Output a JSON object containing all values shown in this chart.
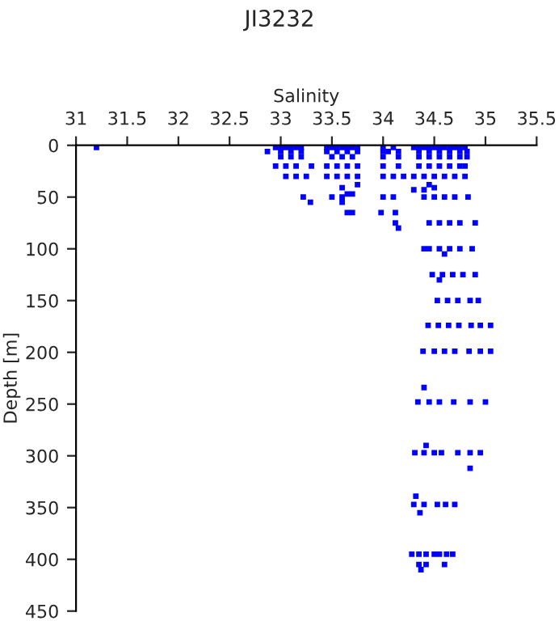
{
  "chart_data": {
    "type": "scatter",
    "title": "JI3232",
    "xlabel": "Salinity",
    "ylabel": "Depth [m]",
    "xlim": [
      31,
      35.5
    ],
    "xticks": [
      31,
      31.5,
      32,
      32.5,
      33,
      33.5,
      34,
      34.5,
      35,
      35.5
    ],
    "ylim": [
      450,
      0
    ],
    "yticks": [
      0,
      50,
      100,
      150,
      200,
      250,
      300,
      350,
      400,
      450
    ],
    "marker": "square",
    "grid": false,
    "legend": false,
    "series": [
      {
        "color": "#0000ff",
        "x": [
          31.2,
          32.95,
          33.0,
          33.05,
          33.1,
          33.15,
          33.2,
          33.45,
          33.5,
          33.55,
          33.6,
          33.65,
          33.7,
          33.75,
          34.0,
          34.1,
          34.3,
          34.35,
          34.4,
          34.45,
          34.5,
          34.55,
          34.6,
          34.65,
          34.7,
          34.75,
          34.8,
          32.87,
          33.0,
          33.1,
          33.2,
          33.45,
          33.55,
          33.65,
          33.75,
          34.0,
          34.05,
          34.15,
          34.35,
          34.45,
          34.55,
          34.65,
          34.75,
          34.82,
          33.0,
          33.1,
          33.2,
          33.5,
          33.6,
          33.7,
          34.0,
          34.15,
          34.35,
          34.45,
          34.55,
          34.65,
          34.75,
          34.82,
          32.95,
          33.05,
          33.15,
          33.3,
          33.45,
          33.55,
          33.65,
          33.75,
          34.0,
          34.15,
          34.35,
          34.45,
          34.55,
          34.65,
          34.75,
          34.8,
          33.05,
          33.15,
          33.25,
          33.45,
          33.55,
          33.65,
          33.75,
          34.0,
          34.1,
          34.2,
          34.3,
          34.4,
          34.5,
          34.6,
          34.7,
          34.8,
          33.75,
          34.45,
          33.6,
          34.5,
          34.3,
          34.4,
          33.65,
          33.7,
          33.22,
          33.5,
          33.6,
          34.0,
          34.1,
          34.4,
          34.5,
          34.6,
          34.7,
          34.83,
          33.29,
          33.6,
          33.65,
          33.7,
          33.98,
          34.12,
          34.12,
          34.45,
          34.55,
          34.65,
          34.75,
          34.9,
          34.15,
          34.4,
          34.45,
          34.55,
          34.65,
          34.75,
          34.87,
          34.6,
          34.48,
          34.58,
          34.68,
          34.78,
          34.9,
          34.55,
          34.53,
          34.63,
          34.73,
          34.85,
          34.93,
          34.44,
          34.54,
          34.64,
          34.74,
          34.86,
          34.95,
          35.05,
          34.39,
          34.5,
          34.6,
          34.7,
          34.84,
          34.95,
          35.05,
          34.4,
          34.34,
          34.45,
          34.55,
          34.69,
          34.85,
          35.0,
          34.42,
          34.31,
          34.4,
          34.5,
          34.57,
          34.73,
          34.85,
          34.95,
          34.85,
          34.32,
          34.3,
          34.4,
          34.53,
          34.61,
          34.7,
          34.36,
          34.28,
          34.35,
          34.42,
          34.5,
          34.55,
          34.62,
          34.68,
          34.35,
          34.42,
          34.6,
          34.37
        ],
        "values": [
          2,
          2,
          2,
          2,
          2,
          2,
          2,
          2,
          2,
          2,
          2,
          2,
          2,
          2,
          2,
          2,
          2,
          2,
          2,
          2,
          2,
          2,
          2,
          2,
          2,
          2,
          2,
          6,
          6,
          6,
          6,
          6,
          6,
          6,
          6,
          6,
          6,
          6,
          6,
          6,
          6,
          6,
          6,
          6,
          11,
          11,
          11,
          11,
          11,
          11,
          11,
          11,
          11,
          11,
          11,
          11,
          11,
          11,
          20,
          20,
          20,
          20,
          20,
          20,
          20,
          20,
          20,
          20,
          20,
          20,
          20,
          20,
          20,
          20,
          30,
          30,
          30,
          30,
          30,
          30,
          30,
          30,
          30,
          30,
          30,
          30,
          30,
          30,
          30,
          30,
          38,
          38,
          41,
          41,
          43,
          43,
          47,
          47,
          50,
          50,
          50,
          50,
          50,
          50,
          50,
          50,
          50,
          50,
          55,
          55,
          65,
          65,
          65,
          65,
          75,
          75,
          75,
          75,
          75,
          75,
          80,
          100,
          100,
          100,
          100,
          100,
          100,
          105,
          125,
          125,
          125,
          125,
          125,
          130,
          150,
          150,
          150,
          150,
          150,
          174,
          174,
          174,
          174,
          174,
          174,
          174,
          199,
          199,
          199,
          199,
          199,
          199,
          199,
          234,
          248,
          248,
          248,
          248,
          248,
          248,
          290,
          297,
          297,
          297,
          297,
          297,
          297,
          297,
          312,
          339,
          347,
          347,
          347,
          347,
          347,
          355,
          395,
          395,
          395,
          395,
          395,
          395,
          395,
          405,
          405,
          405,
          410
        ]
      }
    ]
  }
}
